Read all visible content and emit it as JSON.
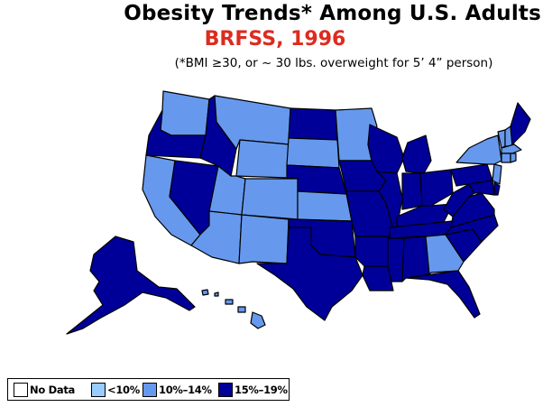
{
  "header": {
    "title": "Obesity Trends*  Among U.S. Adults",
    "subtitle": "BRFSS, 1996",
    "note": "(*BMI ≥30, or ~ 30 lbs. overweight for 5’ 4” person)"
  },
  "colors": {
    "subtitle": "#dd2b1e",
    "no_data": "#ffffff",
    "lt10": "#99ccff",
    "p10_14": "#6699ee",
    "p15_19": "#000099",
    "border": "#000000"
  },
  "legend": [
    {
      "label": "No Data",
      "color": "#ffffff"
    },
    {
      "label": "<10%",
      "color": "#99ccff"
    },
    {
      "label": "10%–14%",
      "color": "#6699ee"
    },
    {
      "label": "15%–19%",
      "color": "#000099"
    }
  ],
  "map_data": {
    "lt10": [],
    "p10_14": [
      "WA",
      "MT",
      "WY",
      "SD",
      "MN",
      "CA",
      "UT",
      "CO",
      "KS",
      "AZ",
      "NM",
      "HI",
      "GA",
      "NY",
      "VT",
      "NH",
      "MA",
      "CT",
      "RI",
      "NJ"
    ],
    "p15_19": [
      "OR",
      "ID",
      "NV",
      "ND",
      "NE",
      "OK",
      "TX",
      "IA",
      "MO",
      "AR",
      "LA",
      "WI",
      "IL",
      "MI",
      "IN",
      "OH",
      "KY",
      "TN",
      "MS",
      "AL",
      "FL",
      "SC",
      "NC",
      "VA",
      "WV",
      "PA",
      "MD",
      "DE",
      "ME",
      "AK"
    ]
  }
}
